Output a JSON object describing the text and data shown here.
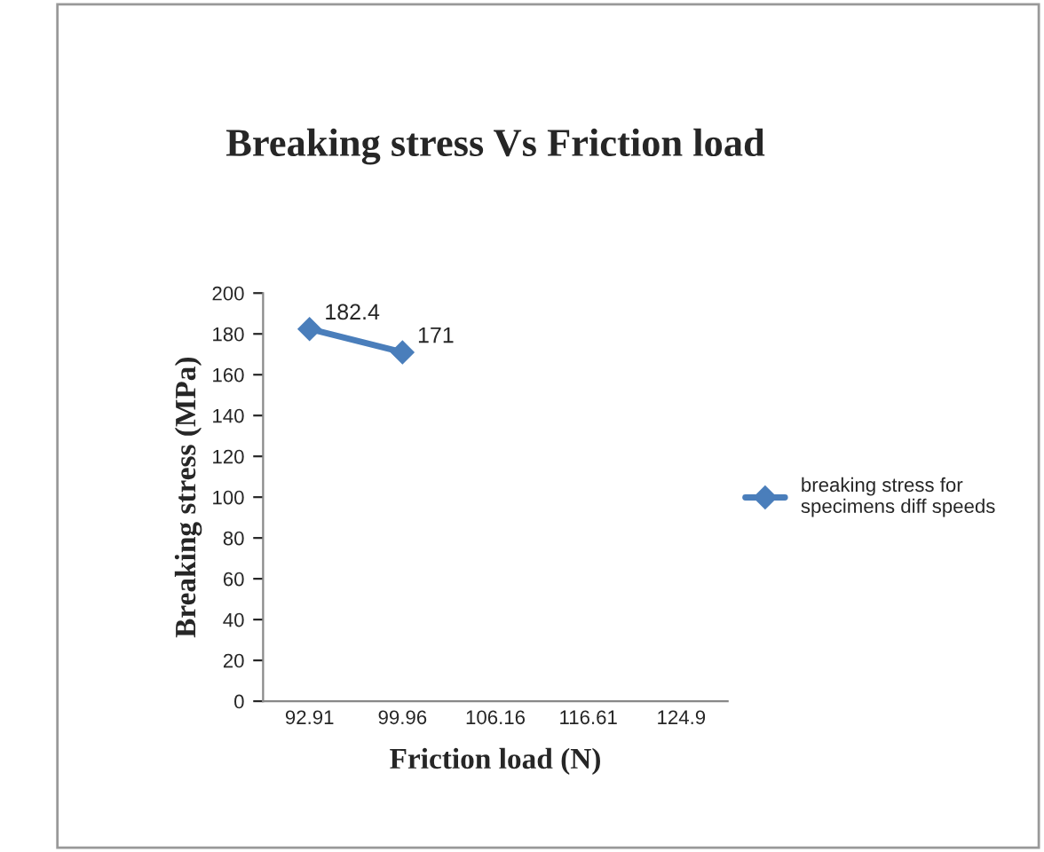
{
  "chart_data": {
    "type": "line",
    "title": "Breaking stress Vs Friction load",
    "xlabel": "Friction load (N)",
    "ylabel": "Breaking stress (MPa)",
    "categories": [
      "92.91",
      "99.96",
      "106.16",
      "116.61",
      "124.9"
    ],
    "series": [
      {
        "name": "breaking stress for\nspecimens diff speeds",
        "color": "#4a7ebb",
        "values": [
          182.4,
          171,
          null,
          null,
          null
        ]
      }
    ],
    "ylim": [
      0,
      200
    ],
    "yticks": [
      0,
      20,
      40,
      60,
      80,
      100,
      120,
      140,
      160,
      180,
      200
    ],
    "data_labels": true,
    "legend": "right",
    "marker": "diamond",
    "line_style": "solid",
    "grid": false
  }
}
